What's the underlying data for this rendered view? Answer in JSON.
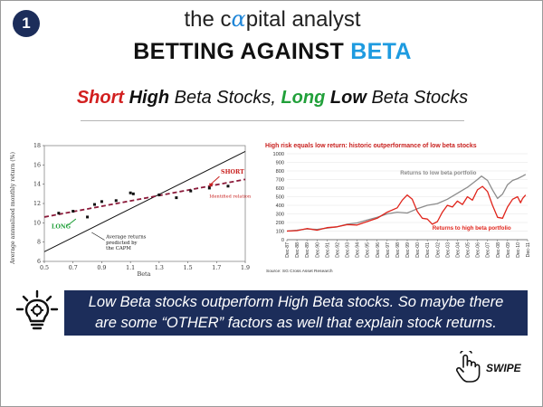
{
  "badge": "1",
  "brand": {
    "part1": "the c",
    "alpha": "α",
    "part2": "pital analyst"
  },
  "title": {
    "part1": "BETTING AGAINST ",
    "highlight": "BETA"
  },
  "subtitle": {
    "w1": "Short",
    "w2": "High",
    "w3": "Beta Stocks,",
    "w4": "Long",
    "w5": "Low",
    "w6": "Beta Stocks"
  },
  "callout": {
    "line1": "Low Beta stocks outperform High Beta stocks. So maybe there",
    "line2": "are some “OTHER” factors as well that explain stock returns."
  },
  "swipe": "SWIPE",
  "icons": {
    "bulb": "lightbulb-gear-icon",
    "hand": "swipe-hand-icon"
  },
  "colors": {
    "navy": "#1c2d5a",
    "accent_blue": "#1e9be0",
    "short_red": "#d21f1f",
    "long_green": "#21a03a",
    "high_beta_red": "#e0241b",
    "low_beta_grey": "#8c8c8c",
    "identified_relation": "#8b1a3a"
  },
  "chart_data": [
    {
      "type": "scatter",
      "title": "",
      "xlabel": "Beta",
      "ylabel": "Average annualized monthly return (%)",
      "xlim": [
        0.5,
        1.9
      ],
      "ylim": [
        6,
        18
      ],
      "x_ticks": [
        "0.5",
        "0.7",
        "0.9",
        "1.1",
        "1.3",
        "1.5",
        "1.7",
        "1.9"
      ],
      "y_ticks": [
        "6",
        "8",
        "10",
        "12",
        "14",
        "16",
        "18"
      ],
      "points": [
        {
          "x": 0.6,
          "y": 11.0
        },
        {
          "x": 0.7,
          "y": 11.2
        },
        {
          "x": 0.8,
          "y": 10.6
        },
        {
          "x": 0.85,
          "y": 11.9
        },
        {
          "x": 0.9,
          "y": 12.2
        },
        {
          "x": 1.0,
          "y": 12.3
        },
        {
          "x": 1.1,
          "y": 13.1
        },
        {
          "x": 1.12,
          "y": 13.0
        },
        {
          "x": 1.3,
          "y": 12.9
        },
        {
          "x": 1.42,
          "y": 12.6
        },
        {
          "x": 1.52,
          "y": 13.3
        },
        {
          "x": 1.65,
          "y": 13.6
        },
        {
          "x": 1.78,
          "y": 13.8
        }
      ],
      "capm_line": {
        "label": "Average returns predicted by the CAPM",
        "start": [
          0.5,
          7.0
        ],
        "end": [
          1.9,
          17.4
        ]
      },
      "identified_relation": {
        "label": "Identified relation",
        "start": [
          0.5,
          10.6
        ],
        "end": [
          1.9,
          14.5
        ]
      },
      "annotations": {
        "short": "SHORT",
        "long": "LONG"
      }
    },
    {
      "type": "line",
      "title": "High risk equals low return: historic outperformance of low beta stocks",
      "source": "Source: SG Cross Asset Research",
      "ylim": [
        0,
        1000
      ],
      "y_ticks": [
        "0",
        "100",
        "200",
        "300",
        "400",
        "500",
        "600",
        "700",
        "800",
        "900",
        "1000"
      ],
      "x_ticks": [
        "Dec-87",
        "Dec-88",
        "Dec-89",
        "Dec-90",
        "Dec-91",
        "Dec-92",
        "Dec-93",
        "Dec-94",
        "Dec-95",
        "Dec-96",
        "Dec-97",
        "Dec-98",
        "Dec-99",
        "Dec-00",
        "Dec-01",
        "Dec-02",
        "Dec-03",
        "Dec-04",
        "Dec-05",
        "Dec-06",
        "Dec-07",
        "Dec-08",
        "Dec-09",
        "Dec-10",
        "Dec-11"
      ],
      "series": [
        {
          "name": "Returns to low beta portfolio",
          "x": [
            1987.9,
            1988.9,
            1989.9,
            1990.9,
            1991.9,
            1992.9,
            1993.9,
            1994.9,
            1995.9,
            1996.9,
            1997.9,
            1998.9,
            1999.9,
            2000.9,
            2001.9,
            2002.9,
            2003.9,
            2004.9,
            2005.9,
            2006.9,
            2007.3,
            2007.9,
            2008.4,
            2008.9,
            2009.4,
            2009.9,
            2010.4,
            2010.9,
            2011.4,
            2011.7
          ],
          "values": [
            100,
            110,
            125,
            120,
            135,
            150,
            180,
            195,
            230,
            260,
            300,
            320,
            310,
            360,
            400,
            420,
            470,
            540,
            610,
            700,
            740,
            690,
            580,
            480,
            530,
            640,
            690,
            710,
            740,
            760
          ]
        },
        {
          "name": "Returns to high beta portfolio",
          "x": [
            1987.9,
            1988.9,
            1989.9,
            1990.9,
            1991.9,
            1992.9,
            1993.9,
            1994.9,
            1995.9,
            1996.9,
            1997.9,
            1998.9,
            1999.4,
            1999.9,
            2000.4,
            2000.9,
            2001.4,
            2001.9,
            2002.4,
            2002.9,
            2003.4,
            2003.9,
            2004.4,
            2004.9,
            2005.4,
            2005.9,
            2006.4,
            2006.9,
            2007.4,
            2007.9,
            2008.4,
            2008.9,
            2009.4,
            2009.9,
            2010.4,
            2010.9,
            2011.2,
            2011.4,
            2011.7
          ],
          "values": [
            100,
            105,
            130,
            110,
            140,
            150,
            175,
            170,
            210,
            250,
            320,
            370,
            460,
            520,
            470,
            330,
            250,
            240,
            180,
            210,
            320,
            400,
            380,
            450,
            410,
            500,
            460,
            580,
            620,
            560,
            400,
            260,
            250,
            380,
            470,
            500,
            430,
            480,
            520
          ]
        }
      ]
    }
  ]
}
